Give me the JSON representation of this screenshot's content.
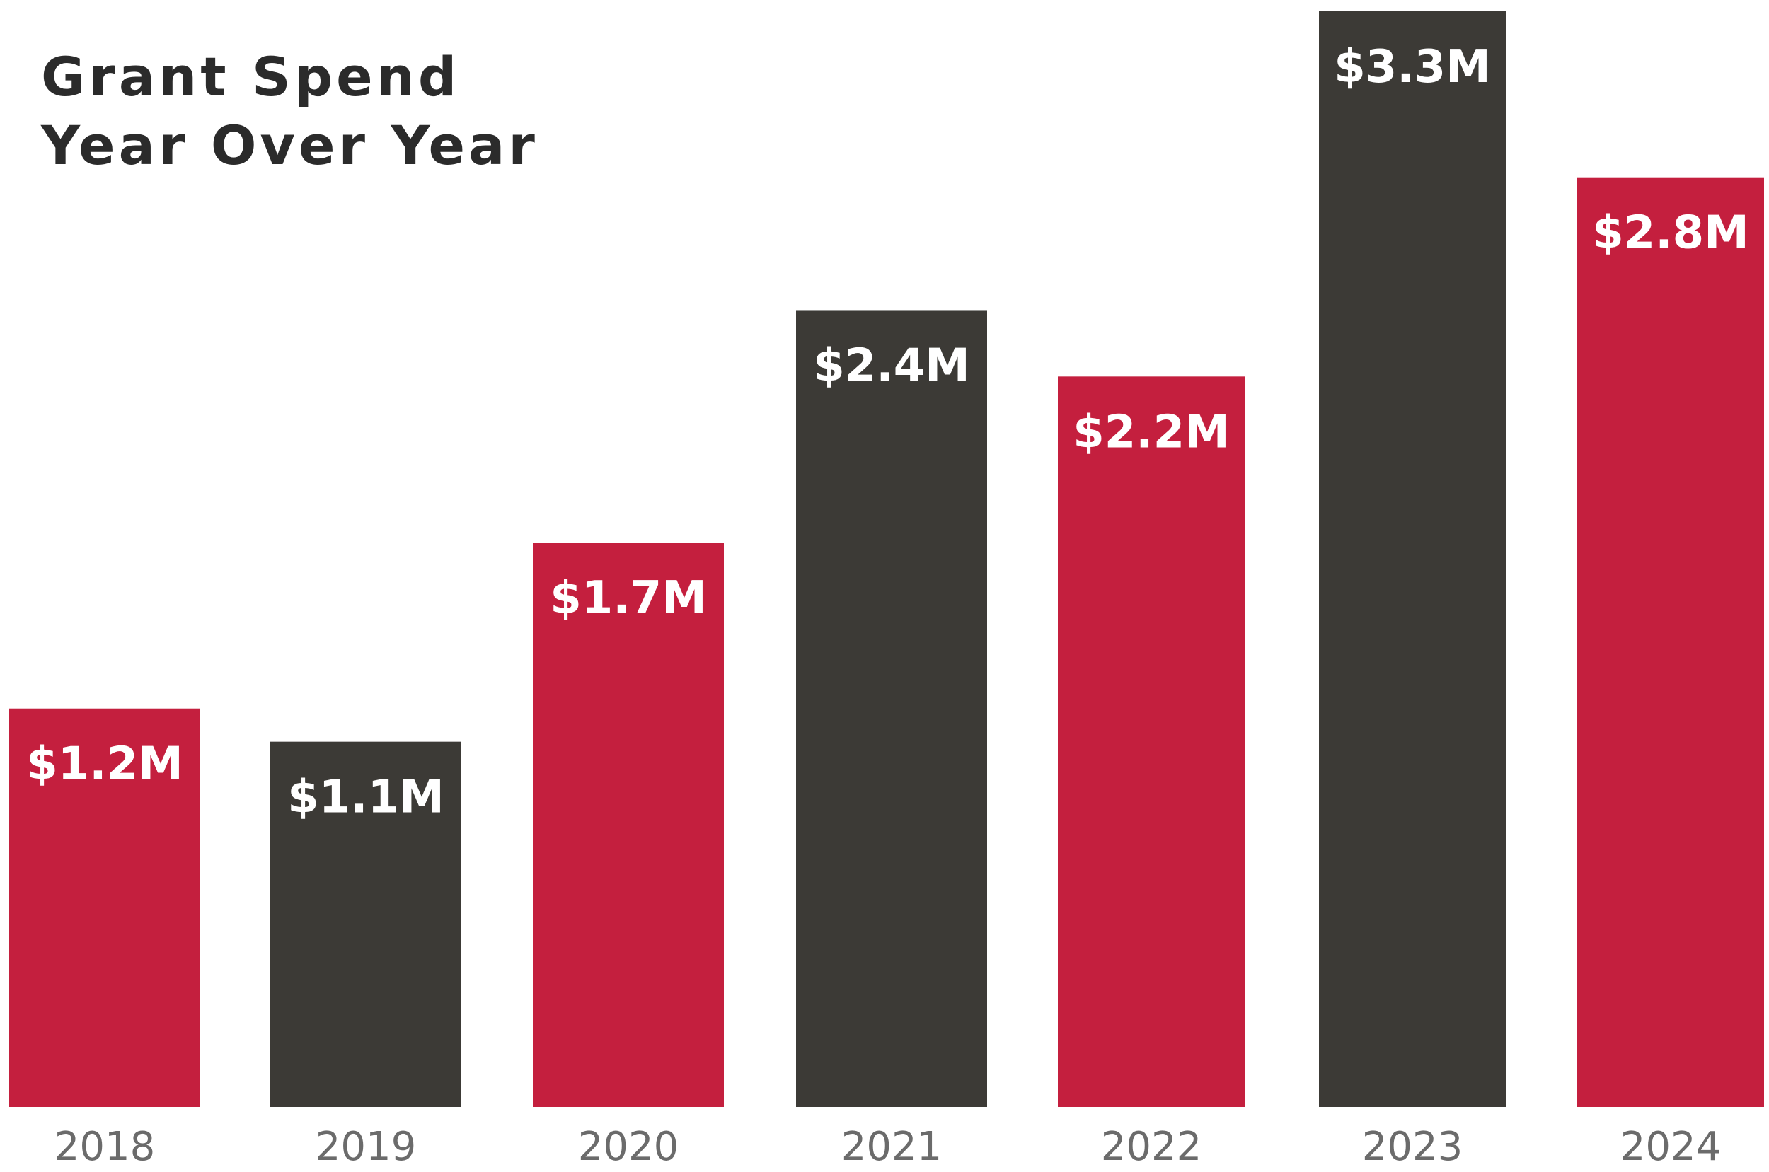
{
  "chart_data": {
    "type": "bar",
    "title": [
      "Grant Spend",
      "Year Over Year"
    ],
    "xlabel": "",
    "ylabel": "",
    "unit": "$M",
    "ylim": [
      0,
      3.3
    ],
    "grid": false,
    "legend": "none",
    "categories": [
      "2018",
      "2019",
      "2020",
      "2021",
      "2022",
      "2023",
      "2024"
    ],
    "values": [
      1.2,
      1.1,
      1.7,
      2.4,
      2.2,
      3.3,
      2.8
    ],
    "data_labels": [
      "$1.2M",
      "$1.1M",
      "$1.7M",
      "$2.4M",
      "$2.2M",
      "$3.3M",
      "$2.8M"
    ],
    "bar_colors": [
      "#c41f3e",
      "#3c3a36",
      "#c41f3e",
      "#3c3a36",
      "#c41f3e",
      "#3c3a36",
      "#c41f3e"
    ]
  }
}
